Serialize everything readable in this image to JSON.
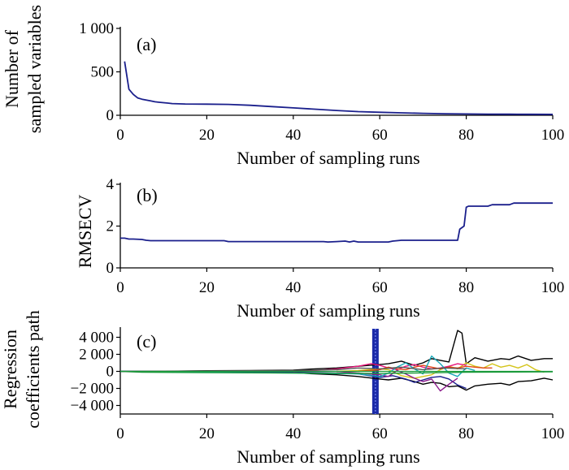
{
  "chart_data": [
    {
      "panel": "(a)",
      "type": "line",
      "xlabel": "Number of sampling runs",
      "ylabel_lines": [
        "Number of",
        "sampled variables"
      ],
      "xlim": [
        0,
        100
      ],
      "ylim": [
        0,
        1000
      ],
      "xticks": [
        "0",
        "20",
        "40",
        "60",
        "80",
        "100"
      ],
      "yticks": [
        {
          "value": 0,
          "label": "0"
        },
        {
          "value": 500,
          "label": "500"
        },
        {
          "value": 1000,
          "label": "1 000"
        }
      ],
      "series": [
        {
          "name": "sampled variables",
          "color": "#1a1f8c",
          "x": [
            1,
            2,
            3,
            4,
            5,
            6,
            7,
            8,
            9,
            10,
            11,
            12,
            15,
            20,
            25,
            30,
            35,
            40,
            45,
            50,
            55,
            60,
            65,
            70,
            75,
            80,
            85,
            90,
            95,
            100
          ],
          "y": [
            620,
            300,
            240,
            200,
            185,
            175,
            165,
            155,
            150,
            145,
            140,
            135,
            130,
            128,
            125,
            115,
            100,
            85,
            70,
            55,
            42,
            35,
            28,
            22,
            18,
            15,
            13,
            12,
            11,
            10
          ]
        }
      ]
    },
    {
      "panel": "(b)",
      "type": "line",
      "xlabel": "Number of sampling runs",
      "ylabel_lines": [
        "RMSECV"
      ],
      "xlim": [
        0,
        100
      ],
      "ylim": [
        0,
        4
      ],
      "xticks": [
        "0",
        "20",
        "40",
        "60",
        "80",
        "100"
      ],
      "yticks": [
        {
          "value": 0,
          "label": "0"
        },
        {
          "value": 2,
          "label": "2"
        },
        {
          "value": 4,
          "label": "4"
        }
      ],
      "series": [
        {
          "name": "RMSECV",
          "color": "#1a1f8c",
          "x": [
            0,
            1,
            2,
            3,
            5,
            6,
            7,
            15,
            24,
            25,
            35,
            47,
            48,
            50,
            52,
            53,
            54,
            55,
            62,
            63,
            65,
            70,
            78,
            78.5,
            79.5,
            80,
            80.5,
            85,
            86,
            90,
            91,
            100
          ],
          "y": [
            1.42,
            1.42,
            1.38,
            1.38,
            1.36,
            1.32,
            1.3,
            1.3,
            1.3,
            1.26,
            1.26,
            1.26,
            1.24,
            1.26,
            1.28,
            1.24,
            1.28,
            1.24,
            1.24,
            1.28,
            1.32,
            1.32,
            1.32,
            1.85,
            2.0,
            2.9,
            2.95,
            2.95,
            3.02,
            3.02,
            3.1,
            3.1
          ]
        }
      ]
    },
    {
      "panel": "(c)",
      "type": "line",
      "xlabel": "Number of sampling runs",
      "ylabel_lines": [
        "Regression",
        "coefficients path"
      ],
      "xlim": [
        0,
        100
      ],
      "ylim": [
        -5000,
        5000
      ],
      "xticks": [
        "0",
        "20",
        "40",
        "60",
        "80",
        "100"
      ],
      "yticks": [
        {
          "value": 4000,
          "label": "4 000"
        },
        {
          "value": 2000,
          "label": "2 000"
        },
        {
          "value": 0,
          "label": "0"
        },
        {
          "value": -2000,
          "label": "−2 000"
        },
        {
          "value": -4000,
          "label": "−4 000"
        }
      ],
      "marker_line": {
        "x": 59,
        "color": "#1a2aa8"
      },
      "series": [
        {
          "name": "path-1",
          "color": "#000000",
          "x": [
            0,
            10,
            20,
            30,
            40,
            45,
            50,
            55,
            60,
            62,
            65,
            68,
            70,
            72,
            74,
            76,
            78,
            79,
            80,
            82,
            85,
            88,
            90,
            92,
            95,
            98,
            100
          ],
          "y": [
            0,
            0,
            80,
            100,
            150,
            300,
            400,
            600,
            800,
            900,
            1200,
            700,
            1000,
            1500,
            1300,
            1100,
            4800,
            4500,
            900,
            1600,
            1200,
            1500,
            1400,
            1800,
            1300,
            1500,
            1500
          ]
        },
        {
          "name": "path-2",
          "color": "#000000",
          "x": [
            0,
            10,
            20,
            30,
            40,
            45,
            50,
            55,
            60,
            62,
            65,
            68,
            70,
            72,
            74,
            76,
            78,
            80,
            82,
            85,
            88,
            90,
            92,
            95,
            98,
            100
          ],
          "y": [
            0,
            -50,
            -80,
            -100,
            -150,
            -300,
            -400,
            -600,
            -900,
            -1000,
            -800,
            -1200,
            -1500,
            -1300,
            -1400,
            -1800,
            -1700,
            -2200,
            -1700,
            -1500,
            -1400,
            -1600,
            -1200,
            -1100,
            -800,
            -1000
          ]
        },
        {
          "name": "path-3",
          "color": "#1a1f8c",
          "x": [
            0,
            20,
            40,
            50,
            55,
            60,
            63,
            66,
            68,
            70,
            72,
            74,
            76,
            78,
            80
          ],
          "y": [
            0,
            0,
            -100,
            -200,
            -300,
            -700,
            -500,
            -900,
            -1300,
            -1000,
            -700,
            -600,
            -900,
            -1600,
            -2000
          ]
        },
        {
          "name": "path-4",
          "color": "#d4c41a",
          "x": [
            50,
            55,
            60,
            62,
            65,
            68,
            70,
            72,
            74,
            76,
            78,
            80,
            82,
            84,
            86,
            88,
            90,
            92,
            94,
            96,
            98
          ],
          "y": [
            0,
            100,
            300,
            200,
            -500,
            -800,
            -600,
            -400,
            200,
            600,
            300,
            1000,
            600,
            400,
            900,
            500,
            700,
            400,
            800,
            200,
            -100
          ]
        },
        {
          "name": "path-5",
          "color": "#e8147a",
          "x": [
            40,
            45,
            50,
            55,
            58,
            60,
            62,
            64,
            66,
            68,
            70,
            72,
            74,
            76,
            78,
            80
          ],
          "y": [
            0,
            100,
            300,
            600,
            900,
            700,
            400,
            200,
            600,
            800,
            500,
            300,
            400,
            600,
            900,
            700
          ]
        },
        {
          "name": "path-6",
          "color": "#8b1a8b",
          "x": [
            50,
            55,
            60,
            62,
            64,
            66,
            68,
            70,
            72,
            74,
            76,
            78
          ],
          "y": [
            0,
            -200,
            -400,
            -600,
            100,
            -300,
            -800,
            -1200,
            -900,
            -2300,
            -1500,
            -800
          ]
        },
        {
          "name": "path-7",
          "color": "#e04a1a",
          "x": [
            55,
            60,
            62,
            64,
            66,
            68,
            70,
            72,
            74,
            76,
            78,
            80,
            82,
            84,
            86
          ],
          "y": [
            0,
            200,
            500,
            300,
            200,
            500,
            700,
            500,
            300,
            500,
            400,
            600,
            500,
            400,
            400
          ]
        },
        {
          "name": "path-8",
          "color": "#1aa8b8",
          "x": [
            0,
            20,
            40,
            55,
            60,
            62,
            64,
            66,
            68,
            70,
            72,
            74,
            76,
            78,
            80,
            82
          ],
          "y": [
            0,
            -100,
            -200,
            -300,
            -600,
            -200,
            500,
            1000,
            300,
            -300,
            1800,
            900,
            -200,
            -600,
            400,
            100
          ]
        },
        {
          "name": "path-9",
          "color": "#1a9a3a",
          "x": [
            0,
            5,
            20,
            40,
            60,
            80,
            100
          ],
          "y": [
            0,
            -100,
            -150,
            -200,
            -250,
            -100,
            -50
          ]
        },
        {
          "name": "path-10",
          "color": "#555555",
          "x": [
            0,
            20,
            40,
            50,
            55,
            60,
            65,
            70,
            75,
            80
          ],
          "y": [
            0,
            50,
            100,
            200,
            400,
            300,
            500,
            200,
            400,
            300
          ]
        }
      ]
    }
  ]
}
